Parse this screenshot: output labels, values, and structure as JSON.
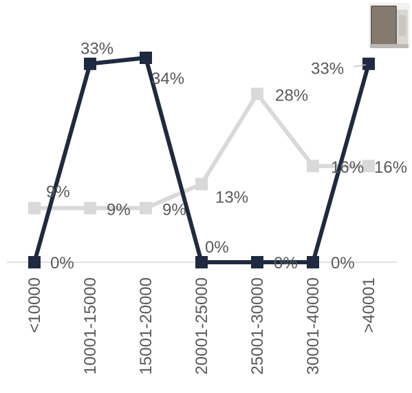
{
  "chart_data": {
    "type": "line",
    "title": "",
    "xlabel": "",
    "ylabel": "",
    "categories": [
      "<10000",
      "10001-15000",
      "15001-20000",
      "20001-25000",
      "25001-30000",
      "30001-40000",
      ">40001"
    ],
    "ylim": [
      0,
      40
    ],
    "grid": false,
    "legend": "none",
    "series": [
      {
        "color": "#1f2a40",
        "values": [
          0,
          33,
          34,
          0,
          0,
          0,
          33
        ],
        "labels": [
          "0%",
          "33%",
          "34%",
          "0%",
          "0%",
          "0%",
          "33%"
        ]
      },
      {
        "color": "#d9d9d9",
        "values": [
          9,
          9,
          9,
          13,
          28,
          16,
          16
        ],
        "labels": [
          "9%",
          "9%",
          "9%",
          "13%",
          "28%",
          "16%",
          "16%"
        ]
      }
    ]
  },
  "thumbnail_icon": "humidifier-product-icon"
}
